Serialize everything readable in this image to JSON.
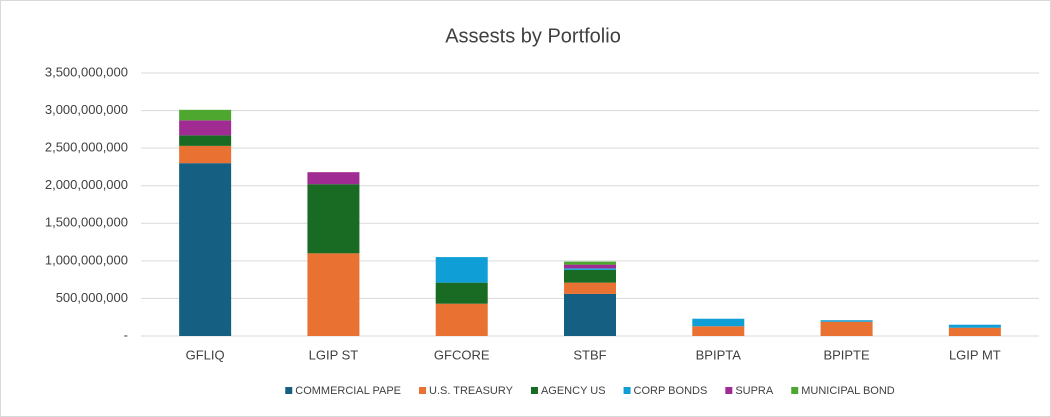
{
  "chart_data": {
    "type": "stacked_bar",
    "title": "Assests by Portfolio",
    "categories": [
      "GFLIQ",
      "LGIP ST",
      "GFCORE",
      "STBF",
      "BPIPTA",
      "BPIPTE",
      "LGIP MT"
    ],
    "series": [
      {
        "name": "COMMERCIAL PAPE",
        "color": "#156082",
        "values": [
          2300000000,
          0,
          0,
          560000000,
          0,
          0,
          0
        ]
      },
      {
        "name": "U.S. TREASURY",
        "color": "#e97132",
        "values": [
          230000000,
          1100000000,
          430000000,
          150000000,
          130000000,
          190000000,
          110000000
        ]
      },
      {
        "name": "AGENCY US",
        "color": "#196b24",
        "values": [
          140000000,
          920000000,
          280000000,
          170000000,
          0,
          0,
          0
        ]
      },
      {
        "name": "CORP BONDS",
        "color": "#0f9ed5",
        "values": [
          0,
          0,
          340000000,
          20000000,
          100000000,
          20000000,
          40000000
        ]
      },
      {
        "name": "SUPRA",
        "color": "#a02b93",
        "values": [
          200000000,
          160000000,
          0,
          50000000,
          0,
          0,
          0
        ]
      },
      {
        "name": "MUNICIPAL BOND",
        "color": "#4ea72e",
        "values": [
          140000000,
          0,
          0,
          40000000,
          0,
          0,
          0
        ]
      }
    ],
    "ylim": [
      0,
      3500000000
    ],
    "yticks": [
      {
        "value": 0,
        "label": "-"
      },
      {
        "value": 500000000,
        "label": "500,000,000"
      },
      {
        "value": 1000000000,
        "label": "1,000,000,000"
      },
      {
        "value": 1500000000,
        "label": "1,500,000,000"
      },
      {
        "value": 2000000000,
        "label": "2,000,000,000"
      },
      {
        "value": 2500000000,
        "label": "2,500,000,000"
      },
      {
        "value": 3000000000,
        "label": "3,000,000,000"
      },
      {
        "value": 3500000000,
        "label": "3,500,000,000"
      }
    ],
    "grid": true,
    "legend": "bottom"
  }
}
